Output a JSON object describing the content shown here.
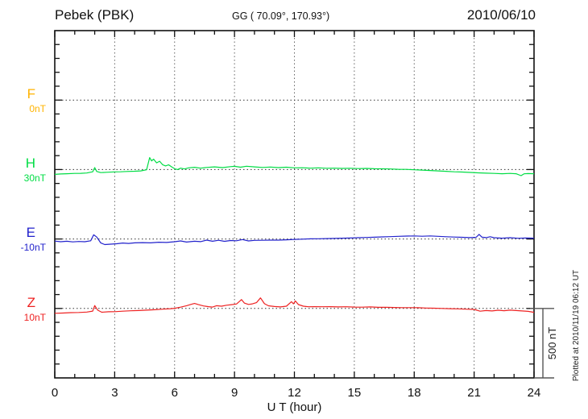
{
  "header": {
    "station": "Pebek (PBK)",
    "coords": "GG ( 70.09°, 170.93°)",
    "date": "2010/06/10"
  },
  "axis": {
    "xlabel": "U T (hour)",
    "xticks": [
      "0",
      "3",
      "6",
      "9",
      "12",
      "15",
      "18",
      "21",
      "24"
    ]
  },
  "scalebar": {
    "label": "500 nT"
  },
  "plot_note": "Plotted at 2010/11/19 06:12 UT",
  "components": [
    {
      "label": "F",
      "offset_label": "0nT",
      "color": "#FFB300"
    },
    {
      "label": "H",
      "offset_label": "30nT",
      "color": "#00DD44"
    },
    {
      "label": "E",
      "offset_label": "-10nT",
      "color": "#2222CC"
    },
    {
      "label": "Z",
      "offset_label": "10nT",
      "color": "#EE2222"
    }
  ],
  "chart_data": {
    "type": "line",
    "title": "Pebek (PBK) magnetogram",
    "date": "2010/06/10",
    "xlabel": "U T (hour)",
    "x_range": [
      0,
      24
    ],
    "x_ticks": [
      0,
      3,
      6,
      9,
      12,
      15,
      18,
      21,
      24
    ],
    "x_minor_tick_hours": 1,
    "scale_bar_nT": 500,
    "y_scale_note": "component baselines separated by 500 nT; minor ticks every 100 nT; values are offsets from baseline in nT",
    "grid": {
      "vertical_dotted_hours": [
        3,
        6,
        9,
        12,
        15,
        18,
        21
      ],
      "horizontal_dotted": "one dotted line per component baseline"
    },
    "legend_position": "left margin",
    "series": [
      {
        "name": "F",
        "baseline_offset_label": "0nT",
        "color": "#FFB300",
        "points_hour_dnT": []
      },
      {
        "name": "H",
        "baseline_offset_label": "30nT",
        "color": "#00DD44",
        "points_hour_dnT": [
          [
            0,
            -35
          ],
          [
            0.3,
            -32
          ],
          [
            0.6,
            -30
          ],
          [
            1,
            -28
          ],
          [
            1.3,
            -27
          ],
          [
            1.6,
            -25
          ],
          [
            1.9,
            -16
          ],
          [
            2,
            14
          ],
          [
            2.1,
            -14
          ],
          [
            2.3,
            -22
          ],
          [
            2.6,
            -20
          ],
          [
            3,
            -17
          ],
          [
            3.3,
            -16
          ],
          [
            3.6,
            -14
          ],
          [
            4,
            -12
          ],
          [
            4.3,
            -10
          ],
          [
            4.6,
            -2
          ],
          [
            4.75,
            86
          ],
          [
            4.85,
            62
          ],
          [
            4.95,
            75
          ],
          [
            5.1,
            48
          ],
          [
            5.25,
            60
          ],
          [
            5.4,
            35
          ],
          [
            5.55,
            26
          ],
          [
            5.7,
            34
          ],
          [
            5.85,
            20
          ],
          [
            6,
            6
          ],
          [
            6.15,
            0
          ],
          [
            6.3,
            10
          ],
          [
            6.5,
            4
          ],
          [
            6.7,
            12
          ],
          [
            7,
            16
          ],
          [
            7.3,
            10
          ],
          [
            7.6,
            15
          ],
          [
            8,
            19
          ],
          [
            8.4,
            14
          ],
          [
            8.8,
            21
          ],
          [
            9,
            23
          ],
          [
            9.3,
            17
          ],
          [
            9.6,
            24
          ],
          [
            10,
            19
          ],
          [
            10.4,
            15
          ],
          [
            10.8,
            18
          ],
          [
            11.2,
            14
          ],
          [
            11.6,
            17
          ],
          [
            12,
            12
          ],
          [
            12.4,
            13
          ],
          [
            12.8,
            10
          ],
          [
            13.2,
            12
          ],
          [
            13.6,
            9
          ],
          [
            14,
            10
          ],
          [
            14.4,
            8
          ],
          [
            14.8,
            9
          ],
          [
            15.2,
            7
          ],
          [
            15.6,
            8
          ],
          [
            16,
            6
          ],
          [
            16.4,
            5
          ],
          [
            16.8,
            4
          ],
          [
            17.2,
            2
          ],
          [
            17.6,
            1
          ],
          [
            18,
            -2
          ],
          [
            18.4,
            -4
          ],
          [
            18.8,
            -7
          ],
          [
            19.2,
            -10
          ],
          [
            19.6,
            -13
          ],
          [
            20,
            -16
          ],
          [
            20.4,
            -18
          ],
          [
            20.8,
            -21
          ],
          [
            21.2,
            -24
          ],
          [
            21.6,
            -26
          ],
          [
            22,
            -28
          ],
          [
            22.4,
            -30
          ],
          [
            22.8,
            -28
          ],
          [
            23.1,
            -30
          ],
          [
            23.35,
            -44
          ],
          [
            23.5,
            -31
          ],
          [
            23.7,
            -29
          ],
          [
            24,
            -30
          ]
        ]
      },
      {
        "name": "E",
        "baseline_offset_label": "-10nT",
        "color": "#2222CC",
        "points_hour_dnT": [
          [
            0,
            -15
          ],
          [
            0.3,
            -20
          ],
          [
            0.6,
            -16
          ],
          [
            0.9,
            -21
          ],
          [
            1.2,
            -18
          ],
          [
            1.5,
            -20
          ],
          [
            1.8,
            -13
          ],
          [
            1.95,
            30
          ],
          [
            2.1,
            14
          ],
          [
            2.3,
            -28
          ],
          [
            2.5,
            -40
          ],
          [
            2.8,
            -37
          ],
          [
            3.1,
            -34
          ],
          [
            3.4,
            -29
          ],
          [
            3.7,
            -32
          ],
          [
            4,
            -28
          ],
          [
            4.4,
            -26
          ],
          [
            4.8,
            -28
          ],
          [
            5.2,
            -23
          ],
          [
            5.6,
            -25
          ],
          [
            6,
            -20
          ],
          [
            6.3,
            -14
          ],
          [
            6.6,
            -22
          ],
          [
            7,
            -16
          ],
          [
            7.3,
            -19
          ],
          [
            7.6,
            -8
          ],
          [
            7.9,
            -16
          ],
          [
            8.2,
            -9
          ],
          [
            8.5,
            -17
          ],
          [
            8.8,
            -11
          ],
          [
            9.1,
            -13
          ],
          [
            9.4,
            -4
          ],
          [
            9.7,
            -14
          ],
          [
            10,
            -10
          ],
          [
            10.4,
            -9
          ],
          [
            10.8,
            -8
          ],
          [
            11.2,
            -8
          ],
          [
            11.6,
            -6
          ],
          [
            12,
            -3
          ],
          [
            12.4,
            -1
          ],
          [
            12.8,
            1
          ],
          [
            13.2,
            2
          ],
          [
            13.6,
            3
          ],
          [
            14,
            4
          ],
          [
            14.4,
            6
          ],
          [
            14.8,
            7
          ],
          [
            15.2,
            9
          ],
          [
            15.6,
            11
          ],
          [
            16,
            13
          ],
          [
            16.4,
            15
          ],
          [
            16.8,
            17
          ],
          [
            17.2,
            19
          ],
          [
            17.6,
            21
          ],
          [
            18,
            22
          ],
          [
            18.4,
            20
          ],
          [
            18.8,
            22
          ],
          [
            19.2,
            19
          ],
          [
            19.6,
            16
          ],
          [
            20,
            14
          ],
          [
            20.4,
            12
          ],
          [
            20.8,
            10
          ],
          [
            21.1,
            12
          ],
          [
            21.25,
            33
          ],
          [
            21.4,
            13
          ],
          [
            21.6,
            10
          ],
          [
            21.8,
            16
          ],
          [
            22,
            9
          ],
          [
            22.4,
            6
          ],
          [
            22.8,
            9
          ],
          [
            23.2,
            5
          ],
          [
            23.6,
            7
          ],
          [
            24,
            6
          ]
        ]
      },
      {
        "name": "Z",
        "baseline_offset_label": "10nT",
        "color": "#EE2222",
        "points_hour_dnT": [
          [
            0,
            -35
          ],
          [
            0.4,
            -33
          ],
          [
            0.8,
            -30
          ],
          [
            1.2,
            -29
          ],
          [
            1.6,
            -26
          ],
          [
            1.9,
            -19
          ],
          [
            2,
            21
          ],
          [
            2.15,
            -12
          ],
          [
            2.35,
            -27
          ],
          [
            2.7,
            -24
          ],
          [
            3,
            -23
          ],
          [
            3.4,
            -20
          ],
          [
            3.8,
            -17
          ],
          [
            4.2,
            -15
          ],
          [
            4.6,
            -12
          ],
          [
            5,
            -9
          ],
          [
            5.4,
            -5
          ],
          [
            5.8,
            -2
          ],
          [
            6,
            1
          ],
          [
            6.3,
            9
          ],
          [
            6.6,
            20
          ],
          [
            6.85,
            30
          ],
          [
            7,
            36
          ],
          [
            7.2,
            27
          ],
          [
            7.45,
            18
          ],
          [
            7.7,
            13
          ],
          [
            7.9,
            10
          ],
          [
            8.1,
            20
          ],
          [
            8.35,
            16
          ],
          [
            8.6,
            23
          ],
          [
            8.85,
            27
          ],
          [
            9.1,
            32
          ],
          [
            9.35,
            64
          ],
          [
            9.5,
            38
          ],
          [
            9.7,
            29
          ],
          [
            9.9,
            33
          ],
          [
            10.1,
            42
          ],
          [
            10.3,
            76
          ],
          [
            10.5,
            34
          ],
          [
            10.7,
            19
          ],
          [
            11,
            14
          ],
          [
            11.3,
            11
          ],
          [
            11.6,
            16
          ],
          [
            11.85,
            49
          ],
          [
            11.95,
            33
          ],
          [
            12.05,
            54
          ],
          [
            12.2,
            28
          ],
          [
            12.45,
            16
          ],
          [
            12.7,
            12
          ],
          [
            13,
            13
          ],
          [
            13.4,
            12
          ],
          [
            13.8,
            13
          ],
          [
            14.2,
            11
          ],
          [
            14.6,
            12
          ],
          [
            15,
            10
          ],
          [
            15.4,
            9
          ],
          [
            15.8,
            11
          ],
          [
            16.2,
            8
          ],
          [
            16.6,
            8
          ],
          [
            17,
            7
          ],
          [
            17.4,
            6
          ],
          [
            17.8,
            6
          ],
          [
            18.2,
            5
          ],
          [
            18.6,
            3
          ],
          [
            19,
            2
          ],
          [
            19.4,
            0
          ],
          [
            19.8,
            -2
          ],
          [
            20.2,
            -3
          ],
          [
            20.6,
            -5
          ],
          [
            21,
            -7
          ],
          [
            21.3,
            -20
          ],
          [
            21.6,
            -15
          ],
          [
            21.9,
            -18
          ],
          [
            22.2,
            -13
          ],
          [
            22.5,
            -16
          ],
          [
            22.8,
            -12
          ],
          [
            23.1,
            -15
          ],
          [
            23.4,
            -18
          ],
          [
            23.7,
            -21
          ],
          [
            24,
            -28
          ]
        ]
      }
    ]
  }
}
